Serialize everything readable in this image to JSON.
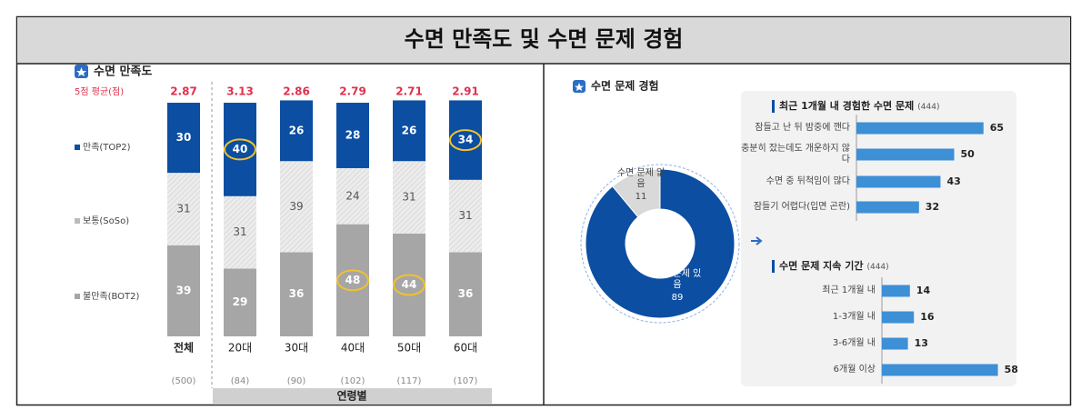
{
  "header": {
    "title": "수면 만족도 및 수면 문제 경험"
  },
  "chart_data": [
    {
      "type": "stacked-bar",
      "title": "수면 만족도",
      "mean_label": "5점 평균(점)",
      "means": [
        2.87,
        3.13,
        2.86,
        2.79,
        2.71,
        2.91
      ],
      "categories": [
        "전체",
        "20대",
        "30대",
        "40대",
        "50대",
        "60대"
      ],
      "sample_labels": [
        "(500)",
        "(84)",
        "(90)",
        "(102)",
        "(117)",
        "(107)"
      ],
      "group_label": "연령별",
      "series": [
        {
          "name": "만족(TOP2)",
          "color": "#0b4ea2",
          "values": [
            30,
            40,
            26,
            28,
            26,
            34
          ]
        },
        {
          "name": "보통(SoSo)",
          "color": "#e6e6e6",
          "values": [
            31,
            31,
            39,
            24,
            31,
            31
          ]
        },
        {
          "name": "불만족(BOT2)",
          "color": "#a6a6a6",
          "values": [
            39,
            29,
            36,
            48,
            44,
            36
          ]
        }
      ],
      "highlights": [
        {
          "series": 0,
          "index": 1
        },
        {
          "series": 0,
          "index": 5
        },
        {
          "series": 2,
          "index": 3
        },
        {
          "series": 2,
          "index": 4
        }
      ]
    },
    {
      "type": "donut",
      "title": "수면 문제 경험",
      "categories": [
        "수면 문제 있음",
        "수면 문제 없음"
      ],
      "values": [
        89,
        11
      ],
      "colors": [
        "#0b4ea2",
        "#d9d9d9"
      ]
    },
    {
      "type": "hbar",
      "title": "최근 1개월 내 경험한 수면 문제",
      "subtitle": "(444)",
      "categories": [
        "잠들고 난 뒤 밤중에 깬다",
        "충분히 잤는데도 개운하지 않다",
        "수면 중 뒤척임이 많다",
        "잠들기 어렵다(입면 곤란)"
      ],
      "values": [
        65,
        50,
        43,
        32
      ],
      "color": "#3d8fd6"
    },
    {
      "type": "hbar",
      "title": "수면 문제 지속 기간",
      "subtitle": "(444)",
      "categories": [
        "최근 1개월 내",
        "1-3개월 내",
        "3-6개월 내",
        "6개월 이상"
      ],
      "values": [
        14,
        16,
        13,
        58
      ],
      "color": "#3d8fd6"
    }
  ]
}
